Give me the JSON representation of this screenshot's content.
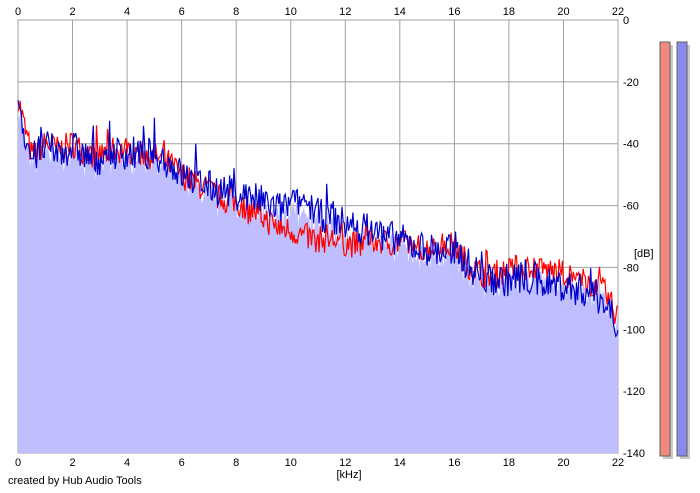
{
  "credit_text": "created by Hub Audio Tools",
  "colors": {
    "plot_bg": "#ffffff",
    "grid": "#a0a0a0",
    "fill": "#bfbfff",
    "left_channel": "#ff0000",
    "right_channel": "#0000cc",
    "left_meter": "#f08a80",
    "right_meter": "#8a8aee"
  },
  "chart_data": {
    "type": "line",
    "title": "",
    "xlabel": "[kHz]",
    "ylabel": "[dB]",
    "xlim": [
      0,
      22
    ],
    "ylim": [
      -140,
      0
    ],
    "x_ticks": [
      0,
      2,
      4,
      6,
      8,
      10,
      12,
      14,
      16,
      18,
      20,
      22
    ],
    "y_ticks": [
      0,
      -20,
      -40,
      -60,
      -80,
      -100,
      -120,
      -140
    ],
    "grid": true,
    "filled_area": true,
    "series": [
      {
        "channel": "left",
        "x": [
          0,
          0.2,
          0.5,
          1,
          1.5,
          2,
          2.5,
          3,
          3.5,
          4,
          4.5,
          5,
          5.5,
          6,
          6.5,
          7,
          7.5,
          8,
          8.5,
          9,
          9.5,
          10,
          10.5,
          11,
          11.5,
          12,
          12.5,
          13,
          13.5,
          14,
          14.5,
          15,
          15.5,
          16,
          16.5,
          17,
          17.5,
          18,
          18.5,
          19,
          19.5,
          20,
          20.5,
          21,
          21.5,
          22
        ],
        "values": [
          -25,
          -33,
          -44,
          -40,
          -42,
          -40,
          -43,
          -44,
          -42,
          -42,
          -43,
          -44,
          -46,
          -50,
          -53,
          -55,
          -58,
          -59,
          -61,
          -64,
          -67,
          -68,
          -70,
          -71,
          -71,
          -72,
          -73,
          -71,
          -72,
          -72,
          -73,
          -74,
          -73,
          -73,
          -79,
          -82,
          -82,
          -81,
          -80,
          -80,
          -81,
          -82,
          -84,
          -85,
          -88,
          -96
        ]
      },
      {
        "channel": "right",
        "x": [
          0,
          0.2,
          0.5,
          1,
          1.5,
          2,
          2.5,
          3,
          3.5,
          4,
          4.5,
          5,
          5.5,
          6,
          6.5,
          7,
          7.5,
          8,
          8.5,
          9,
          9.5,
          10,
          10.5,
          11,
          11.5,
          12,
          12.5,
          13,
          13.5,
          14,
          14.5,
          15,
          15.5,
          16,
          16.5,
          17,
          17.5,
          18,
          18.5,
          19,
          19.5,
          20,
          20.5,
          21,
          21.5,
          22
        ],
        "values": [
          -23,
          -35,
          -45,
          -41,
          -43,
          -41,
          -44,
          -45,
          -43,
          -43,
          -44,
          -43,
          -46,
          -50,
          -52,
          -54,
          -55,
          -56,
          -57,
          -59,
          -61,
          -60,
          -58,
          -63,
          -64,
          -66,
          -67,
          -68,
          -70,
          -71,
          -73,
          -74,
          -75,
          -74,
          -79,
          -83,
          -84,
          -84,
          -83,
          -85,
          -85,
          -86,
          -87,
          -88,
          -91,
          -98
        ]
      }
    ],
    "meters": [
      {
        "channel": "left",
        "level": 1.0
      },
      {
        "channel": "right",
        "level": 1.0
      }
    ]
  }
}
